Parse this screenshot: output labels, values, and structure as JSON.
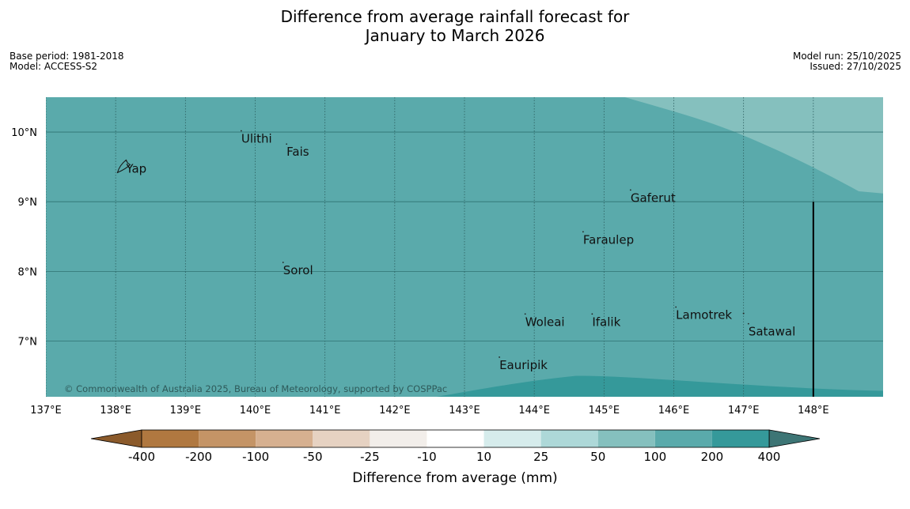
{
  "title": {
    "line1": "Difference from average rainfall forecast for",
    "line2": "January to March 2026"
  },
  "info_left": {
    "base_period": "Base period: 1981-2018",
    "model": "Model: ACCESS-S2"
  },
  "info_right": {
    "model_run": "Model run: 25/10/2025",
    "issued": "Issued: 27/10/2025"
  },
  "map": {
    "lon_range": [
      137,
      149
    ],
    "lat_range": [
      6.2,
      10.5
    ],
    "lon_ticks": [
      {
        "value": 137,
        "label": "137°E"
      },
      {
        "value": 138,
        "label": "138°E"
      },
      {
        "value": 139,
        "label": "139°E"
      },
      {
        "value": 140,
        "label": "140°E"
      },
      {
        "value": 141,
        "label": "141°E"
      },
      {
        "value": 142,
        "label": "142°E"
      },
      {
        "value": 143,
        "label": "143°E"
      },
      {
        "value": 144,
        "label": "144°E"
      },
      {
        "value": 145,
        "label": "145°E"
      },
      {
        "value": 146,
        "label": "146°E"
      },
      {
        "value": 147,
        "label": "147°E"
      },
      {
        "value": 148,
        "label": "148°E"
      }
    ],
    "lat_ticks": [
      {
        "value": 10,
        "label": "10°N"
      },
      {
        "value": 9,
        "label": "9°N"
      },
      {
        "value": 8,
        "label": "8°N"
      },
      {
        "value": 7,
        "label": "7°N"
      }
    ],
    "places": [
      {
        "name": "Ulithi",
        "lon": 139.8,
        "lat": 9.95
      },
      {
        "name": "Fais",
        "lon": 140.45,
        "lat": 9.76
      },
      {
        "name": "Yap",
        "lon": 138.15,
        "lat": 9.52
      },
      {
        "name": "Gaferut",
        "lon": 145.38,
        "lat": 9.1
      },
      {
        "name": "Faraulep",
        "lon": 144.7,
        "lat": 8.5
      },
      {
        "name": "Sorol",
        "lon": 140.4,
        "lat": 8.06
      },
      {
        "name": "Lamotrek",
        "lon": 146.03,
        "lat": 7.42
      },
      {
        "name": "Woleai",
        "lon": 143.87,
        "lat": 7.32
      },
      {
        "name": "Ifalik",
        "lon": 144.83,
        "lat": 7.32
      },
      {
        "name": "Satawal",
        "lon": 147.07,
        "lat": 7.18
      },
      {
        "name": "Eauripik",
        "lon": 143.5,
        "lat": 6.7
      }
    ],
    "boundary_lon": 148,
    "background_color": "#5aaaab",
    "wetter_color": "#85c0be",
    "drier_color": "#35999a",
    "copyright": "© Commonwealth of Australia 2025, Bureau of Meteorology, supported by COSPPac"
  },
  "colorbar": {
    "title": "Difference from average (mm)",
    "ticks": [
      "-400",
      "-200",
      "-100",
      "-50",
      "-25",
      "-10",
      "10",
      "25",
      "50",
      "100",
      "200",
      "400"
    ],
    "colors": [
      "#8b5a2b",
      "#b07840",
      "#c49466",
      "#d6b090",
      "#e6d2c2",
      "#f2eeea",
      "#ffffff",
      "#d6ecec",
      "#add8d8",
      "#85c0be",
      "#5aaaab",
      "#35999a",
      "#3d7575"
    ]
  }
}
